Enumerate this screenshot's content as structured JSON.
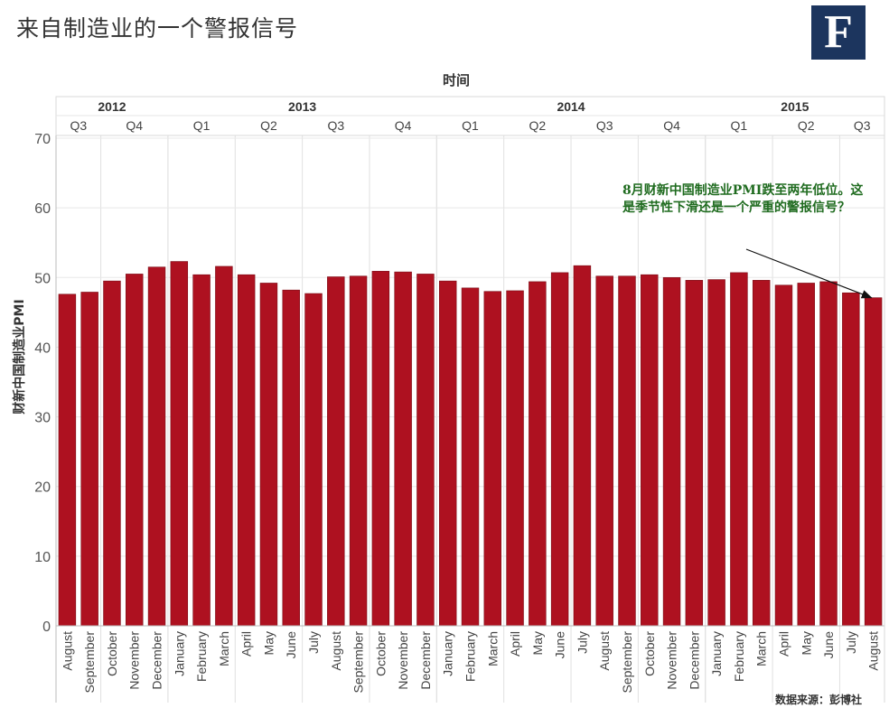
{
  "title": "来自制造业的一个警报信号",
  "logo_text": "F",
  "source": "数据来源：彭博社",
  "colors": {
    "bar": "#ae1120",
    "logo_bg": "#1c355e",
    "annotation": "#1f6b1f",
    "grid": "#d9d9d9"
  },
  "chart_data": {
    "type": "bar",
    "xlabel": "时间",
    "ylabel": "财新中国制造业PMI",
    "ylim": [
      0,
      70
    ],
    "yticks": [
      0,
      10,
      20,
      30,
      40,
      50,
      60,
      70
    ],
    "grid": true,
    "years": [
      {
        "label": "2012",
        "count": 5
      },
      {
        "label": "2013",
        "count": 12
      },
      {
        "label": "2014",
        "count": 12
      },
      {
        "label": "2015",
        "count": 8
      }
    ],
    "quarters": [
      {
        "label": "Q3",
        "count": 2
      },
      {
        "label": "Q4",
        "count": 3
      },
      {
        "label": "Q1",
        "count": 3
      },
      {
        "label": "Q2",
        "count": 3
      },
      {
        "label": "Q3",
        "count": 3
      },
      {
        "label": "Q4",
        "count": 3
      },
      {
        "label": "Q1",
        "count": 3
      },
      {
        "label": "Q2",
        "count": 3
      },
      {
        "label": "Q3",
        "count": 3
      },
      {
        "label": "Q4",
        "count": 3
      },
      {
        "label": "Q1",
        "count": 3
      },
      {
        "label": "Q2",
        "count": 3
      },
      {
        "label": "Q3",
        "count": 2
      }
    ],
    "categories": [
      "August",
      "September",
      "October",
      "November",
      "December",
      "January",
      "February",
      "March",
      "April",
      "May",
      "June",
      "July",
      "August",
      "September",
      "October",
      "November",
      "December",
      "January",
      "February",
      "March",
      "April",
      "May",
      "June",
      "July",
      "August",
      "September",
      "October",
      "November",
      "December",
      "January",
      "February",
      "March",
      "April",
      "May",
      "June",
      "July",
      "August"
    ],
    "values": [
      47.6,
      47.9,
      49.5,
      50.5,
      51.5,
      52.3,
      50.4,
      51.6,
      50.4,
      49.2,
      48.2,
      47.7,
      50.1,
      50.2,
      50.9,
      50.8,
      50.5,
      49.5,
      48.5,
      48.0,
      48.1,
      49.4,
      50.7,
      51.7,
      50.2,
      50.2,
      50.4,
      50.0,
      49.6,
      49.7,
      50.7,
      49.6,
      48.9,
      49.2,
      49.4,
      47.8,
      47.1
    ],
    "annotation": "8月财新中国制造业PMI跌至两年低位。这是季节性下滑还是一个严重的警报信号？"
  }
}
